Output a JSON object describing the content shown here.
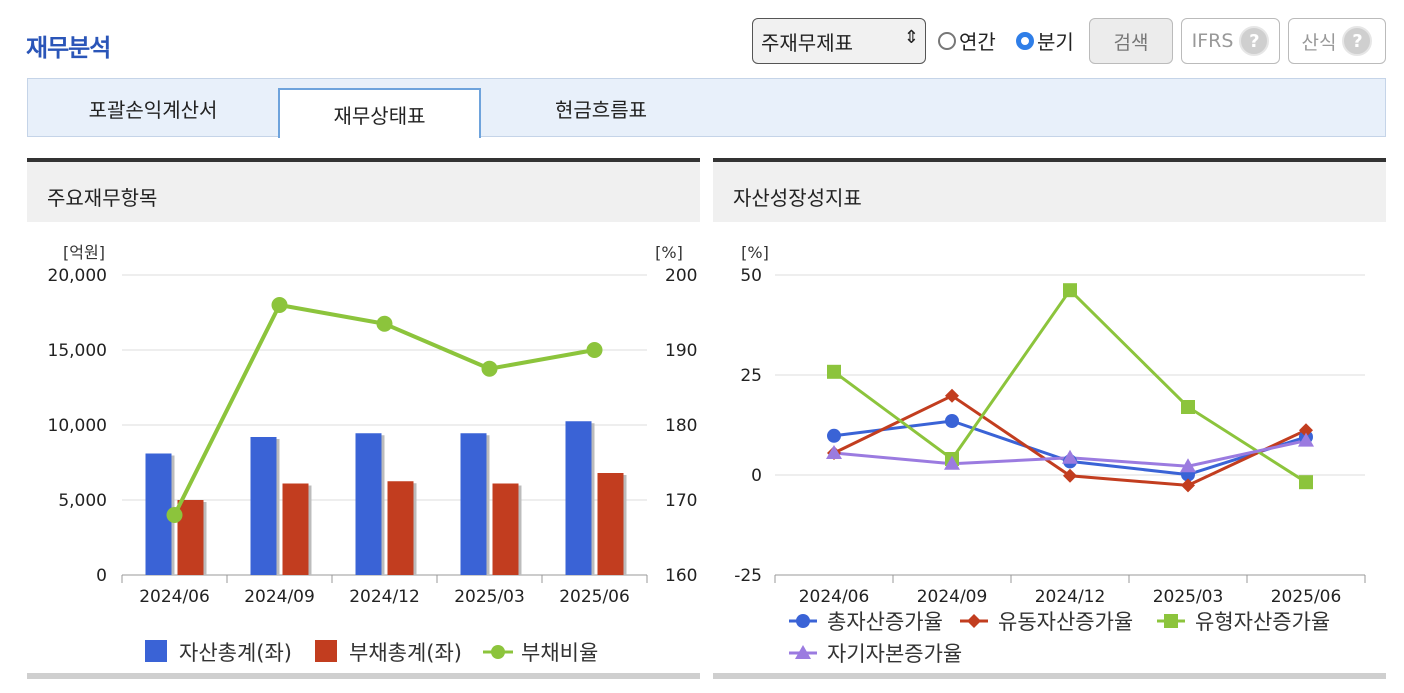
{
  "header": {
    "title": "재무분석",
    "select_value": "주재무제표",
    "radio_annual": "연간",
    "radio_quarter": "분기",
    "search_button": "검색",
    "ifrs_button": "IFRS",
    "formula_button": "산식",
    "help_glyph": "?"
  },
  "tabs": [
    {
      "label": "포괄손익계산서",
      "active": false
    },
    {
      "label": "재무상태표",
      "active": true
    },
    {
      "label": "현금흐름표",
      "active": false
    }
  ],
  "panels": {
    "left_title": "주요재무항목",
    "right_title": "자산성장성지표"
  },
  "chart_data": [
    {
      "type": "bar",
      "categories": [
        "2024/06",
        "2024/09",
        "2024/12",
        "2025/03",
        "2025/06"
      ],
      "left_unit": "[억원]",
      "right_unit": "[%]",
      "ylim": [
        0,
        20000
      ],
      "yticks": [
        "0",
        "5,000",
        "10,000",
        "15,000",
        "20,000"
      ],
      "y2lim": [
        160,
        200
      ],
      "y2ticks": [
        "160",
        "170",
        "180",
        "190",
        "200"
      ],
      "series": [
        {
          "name": "자산총계(좌)",
          "kind": "bar",
          "color": "#3a63d6",
          "values": [
            8100,
            9200,
            9450,
            9450,
            10250
          ]
        },
        {
          "name": "부채총계(좌)",
          "kind": "bar",
          "color": "#c23d1f",
          "values": [
            5000,
            6100,
            6250,
            6100,
            6800
          ]
        },
        {
          "name": "부채비율",
          "kind": "line",
          "axis": "right",
          "color": "#8cc43c",
          "values": [
            168,
            196,
            193.5,
            187.5,
            190
          ]
        }
      ]
    },
    {
      "type": "line",
      "categories": [
        "2024/06",
        "2024/09",
        "2024/12",
        "2025/03",
        "2025/06"
      ],
      "unit": "[%]",
      "ylim": [
        -25,
        50
      ],
      "yticks": [
        "-25",
        "0",
        "25",
        "50"
      ],
      "series": [
        {
          "name": "총자산증가율",
          "color": "#3a63d6",
          "marker": "circle",
          "values": [
            9.8,
            13.5,
            3.4,
            0.1,
            9.5
          ]
        },
        {
          "name": "유동자산증가율",
          "color": "#c23d1f",
          "marker": "diamond",
          "values": [
            5.5,
            19.8,
            -0.2,
            -2.6,
            11.2
          ]
        },
        {
          "name": "유형자산증가율",
          "color": "#8cc43c",
          "marker": "square",
          "values": [
            25.8,
            4.0,
            46.2,
            17.0,
            -1.8
          ]
        },
        {
          "name": "자기자본증가율",
          "color": "#9b7be0",
          "marker": "triangle",
          "values": [
            5.5,
            2.8,
            4.3,
            2.2,
            8.6
          ]
        }
      ]
    }
  ]
}
